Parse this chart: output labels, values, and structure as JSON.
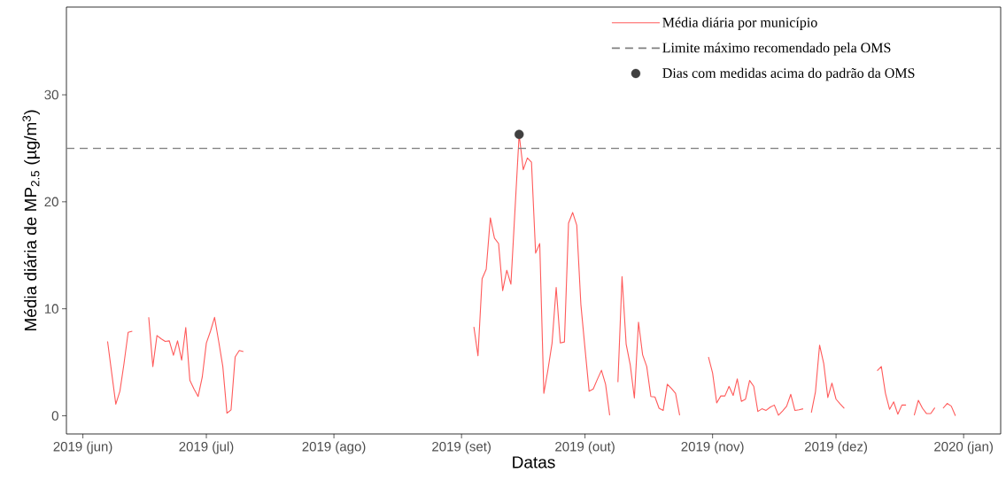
{
  "chart_data": {
    "type": "line",
    "xlabel": "Datas",
    "ylabel": "Média diária de  MP$_{2.5}$ (µg/m$^{3}$)",
    "xlim": [
      "2019-05-28",
      "2020-01-10"
    ],
    "ylim": [
      -1.7,
      38.2
    ],
    "xticks": [
      {
        "value": "2019-06-01",
        "label": "2019 (jun)"
      },
      {
        "value": "2019-07-01",
        "label": "2019 (jul)"
      },
      {
        "value": "2019-08-01",
        "label": "2019 (ago)"
      },
      {
        "value": "2019-09-01",
        "label": "2019 (set)"
      },
      {
        "value": "2019-10-01",
        "label": "2019 (out)"
      },
      {
        "value": "2019-11-01",
        "label": "2019 (nov)"
      },
      {
        "value": "2019-12-01",
        "label": "2019 (dez)"
      },
      {
        "value": "2020-01-01",
        "label": "2020 (jan)"
      }
    ],
    "yticks": [
      0,
      10,
      20,
      30
    ],
    "grid": false,
    "legend": "top right",
    "ref_lines": [
      {
        "axis": "y",
        "value": 25,
        "label": "Limite máximo recomendado pela OMS",
        "color": "#808080",
        "line_style": "dashed"
      }
    ],
    "series": [
      {
        "name": "Média diária por município",
        "color": "#ff5a5a",
        "line_style": "solid",
        "x": [
          "2019-06-07",
          "2019-06-08",
          "2019-06-09",
          "2019-06-10",
          "2019-06-11",
          "2019-06-12",
          "2019-06-13",
          "2019-06-14",
          "2019-06-17",
          "2019-06-18",
          "2019-06-19",
          "2019-06-20",
          "2019-06-21",
          "2019-06-22",
          "2019-06-23",
          "2019-06-24",
          "2019-06-25",
          "2019-06-26",
          "2019-06-27",
          "2019-06-28",
          "2019-06-29",
          "2019-06-30",
          "2019-07-01",
          "2019-07-02",
          "2019-07-03",
          "2019-07-04",
          "2019-07-05",
          "2019-07-06",
          "2019-07-07",
          "2019-07-08",
          "2019-07-09",
          "2019-07-10",
          "2019-07-11",
          "2019-09-04",
          "2019-09-05",
          "2019-09-06",
          "2019-09-07",
          "2019-09-08",
          "2019-09-09",
          "2019-09-10",
          "2019-09-11",
          "2019-09-12",
          "2019-09-13",
          "2019-09-14",
          "2019-09-15",
          "2019-09-16",
          "2019-09-17",
          "2019-09-18",
          "2019-09-19",
          "2019-09-20",
          "2019-09-21",
          "2019-09-22",
          "2019-09-23",
          "2019-09-24",
          "2019-09-25",
          "2019-09-26",
          "2019-09-27",
          "2019-09-28",
          "2019-09-29",
          "2019-09-30",
          "2019-10-01",
          "2019-10-02",
          "2019-10-03",
          "2019-10-04",
          "2019-10-05",
          "2019-10-06",
          "2019-10-07",
          "2019-10-08",
          "2019-10-09",
          "2019-10-10",
          "2019-10-11",
          "2019-10-12",
          "2019-10-13",
          "2019-10-14",
          "2019-10-15",
          "2019-10-16",
          "2019-10-17",
          "2019-10-18",
          "2019-10-19",
          "2019-10-20",
          "2019-10-21",
          "2019-10-22",
          "2019-10-23",
          "2019-10-24",
          "2019-10-25",
          "2019-10-31",
          "2019-11-01",
          "2019-11-02",
          "2019-11-03",
          "2019-11-04",
          "2019-11-05",
          "2019-11-06",
          "2019-11-07",
          "2019-11-08",
          "2019-11-09",
          "2019-11-10",
          "2019-11-11",
          "2019-11-12",
          "2019-11-13",
          "2019-11-14",
          "2019-11-15",
          "2019-11-16",
          "2019-11-17",
          "2019-11-18",
          "2019-11-19",
          "2019-11-20",
          "2019-11-21",
          "2019-11-22",
          "2019-11-23",
          "2019-11-24",
          "2019-11-25",
          "2019-11-26",
          "2019-11-27",
          "2019-11-28",
          "2019-11-29",
          "2019-11-30",
          "2019-12-01",
          "2019-12-02",
          "2019-12-03",
          "2019-12-04",
          "2019-12-11",
          "2019-12-12",
          "2019-12-13",
          "2019-12-14",
          "2019-12-15",
          "2019-12-16",
          "2019-12-17",
          "2019-12-18",
          "2019-12-19",
          "2019-12-20",
          "2019-12-21",
          "2019-12-22",
          "2019-12-23",
          "2019-12-24",
          "2019-12-25",
          "2019-12-26",
          "2019-12-27",
          "2019-12-28",
          "2019-12-29",
          "2019-12-30"
        ],
        "values": [
          6.95,
          4.0,
          1.08,
          2.3,
          4.9,
          7.8,
          7.9,
          null,
          9.2,
          4.6,
          7.5,
          7.2,
          6.95,
          7.0,
          5.65,
          7.0,
          5.2,
          8.25,
          3.3,
          2.5,
          1.8,
          3.6,
          6.8,
          7.9,
          9.2,
          6.95,
          4.6,
          0.25,
          0.55,
          5.5,
          6.1,
          6.0,
          null,
          8.3,
          5.6,
          12.8,
          13.7,
          18.5,
          16.6,
          16.1,
          11.7,
          13.6,
          12.3,
          19.3,
          26.3,
          23.0,
          24.1,
          23.7,
          15.2,
          16.1,
          2.1,
          4.3,
          6.8,
          12.0,
          6.8,
          6.9,
          18.0,
          19.0,
          17.8,
          10.4,
          6.3,
          2.3,
          2.5,
          3.4,
          4.25,
          2.95,
          0.05,
          null,
          3.15,
          13.0,
          6.7,
          4.75,
          1.65,
          8.75,
          5.7,
          4.6,
          1.8,
          1.76,
          0.7,
          0.5,
          2.95,
          2.55,
          2.1,
          0.05,
          null,
          5.5,
          4.0,
          1.2,
          1.85,
          1.85,
          2.75,
          1.9,
          3.45,
          1.35,
          1.55,
          3.3,
          2.75,
          0.4,
          0.65,
          0.5,
          0.8,
          1.0,
          0.05,
          0.45,
          0.9,
          2.0,
          0.5,
          0.55,
          0.65,
          null,
          0.3,
          2.25,
          6.6,
          4.9,
          1.7,
          3.05,
          1.55,
          1.1,
          0.7,
          null,
          4.2,
          4.6,
          2.1,
          0.6,
          1.3,
          0.15,
          1.0,
          1.0,
          null,
          0.05,
          1.45,
          0.7,
          0.2,
          0.2,
          0.75,
          null,
          0.7,
          1.15,
          0.9,
          0.0
        ]
      },
      {
        "name": "Dias com medidas acima do padrão da OMS",
        "type": "scatter",
        "color": "#404040",
        "x": [
          "2019-09-15"
        ],
        "values": [
          26.3
        ]
      }
    ]
  }
}
